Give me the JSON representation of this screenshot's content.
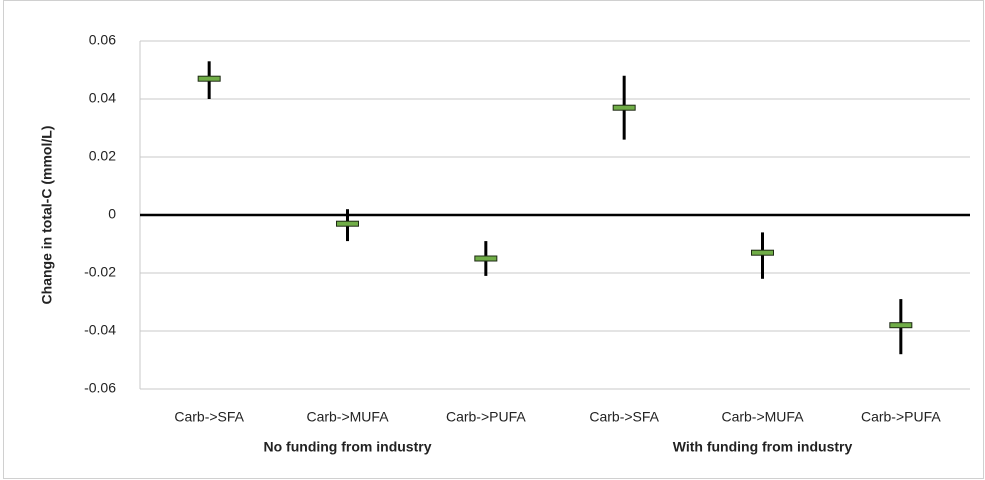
{
  "chart_data": {
    "type": "errorbar",
    "ylabel": "Change in total-C (mmol/L)",
    "groups": [
      {
        "name": "No funding from industry",
        "categories": [
          "Carb->SFA",
          "Carb->MUFA",
          "Carb->PUFA"
        ],
        "values": [
          0.047,
          -0.003,
          -0.015
        ],
        "low": [
          0.04,
          -0.009,
          -0.021
        ],
        "high": [
          0.053,
          0.002,
          -0.009
        ]
      },
      {
        "name": "With funding from industry",
        "categories": [
          "Carb->SFA",
          "Carb->MUFA",
          "Carb->PUFA"
        ],
        "values": [
          0.037,
          -0.013,
          -0.038
        ],
        "low": [
          0.026,
          -0.022,
          -0.048
        ],
        "high": [
          0.048,
          -0.006,
          -0.029
        ]
      }
    ],
    "marker_color": "#70ad47",
    "bar_color": "#000000",
    "ylim": [
      -0.06,
      0.06
    ],
    "yticks": [
      -0.06,
      -0.04,
      -0.02,
      0,
      0.02,
      0.04,
      0.06
    ],
    "grid": true
  }
}
